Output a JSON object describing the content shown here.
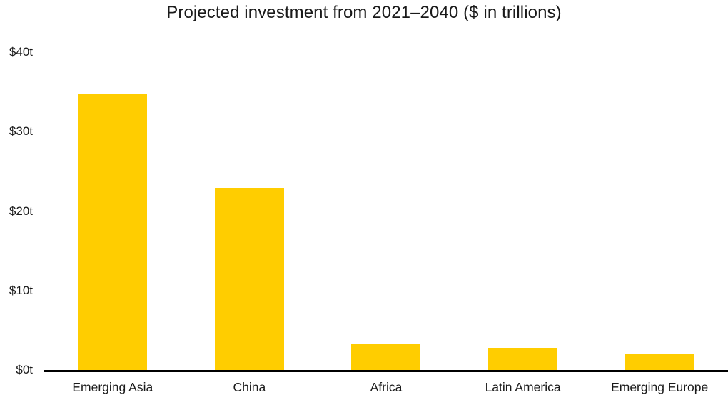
{
  "chart_data": {
    "type": "bar",
    "title": "Projected investment from 2021–2040 ($ in trillions)",
    "categories": [
      "Emerging Asia",
      "China",
      "Africa",
      "Latin America",
      "Emerging Europe"
    ],
    "values": [
      34.7,
      22.9,
      3.2,
      2.8,
      2.0
    ],
    "series_unit": "trillions of dollars",
    "y_ticks": [
      {
        "value": 0,
        "label": "$0t"
      },
      {
        "value": 10,
        "label": "$10t"
      },
      {
        "value": 20,
        "label": "$20t"
      },
      {
        "value": 30,
        "label": "$30t"
      },
      {
        "value": 40,
        "label": "$40t"
      }
    ],
    "ylim": [
      0,
      40
    ],
    "xlabel": "",
    "ylabel": "",
    "legend_position": "none",
    "grid": false,
    "colors": {
      "bar": "#FFCD00",
      "axis": "#000000",
      "text": "#1A1A1A",
      "background": "#FFFFFF"
    }
  }
}
